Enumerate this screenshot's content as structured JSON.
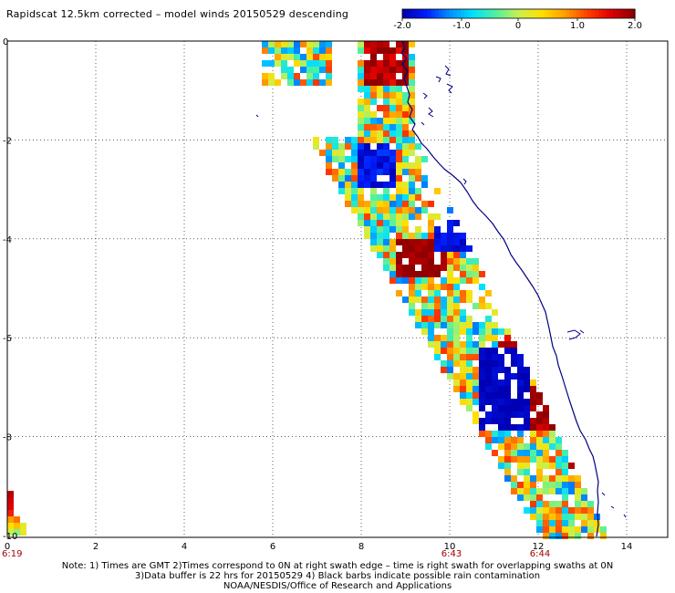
{
  "title": "Rapidscat 12.5km corrected – model winds 20150529 descending",
  "colorbar": {
    "min": -2.0,
    "max": 2.0,
    "tick_labels": [
      "-2.0",
      "-1.0",
      "0",
      "1.0",
      "2.0"
    ],
    "colors": [
      "#0000b4",
      "#0020ff",
      "#0090ff",
      "#00e0ff",
      "#50f0a0",
      "#c8f050",
      "#ffe000",
      "#ffa000",
      "#ff4000",
      "#e00000",
      "#900000"
    ]
  },
  "map": {
    "x_ticks": [
      "0",
      "2",
      "4",
      "6",
      "8",
      "10",
      "12",
      "14"
    ],
    "y_ticks": [
      "0",
      "-2",
      "-4",
      "-6",
      "-8",
      "-10"
    ],
    "time_labels": [
      {
        "text": "6:19",
        "x_value": 0
      },
      {
        "text": "6:43",
        "x_value": 10
      },
      {
        "text": "6:44",
        "x_value": 12
      }
    ],
    "grid": "dotted",
    "coastline_color": "#000080",
    "swath_description": "wind speed difference cells along coast, diagonal swath"
  },
  "footer": {
    "line1": "Note: 1) Times are GMT 2)Times correspond to 0N at right swath edge – time is right swath for overlapping swaths at 0N",
    "line2": "3)Data buffer is 22 hrs for 20150529 4) Black barbs indicate possible rain contamination",
    "line3": "NOAA/NESDIS/Office of Research and Applications"
  }
}
